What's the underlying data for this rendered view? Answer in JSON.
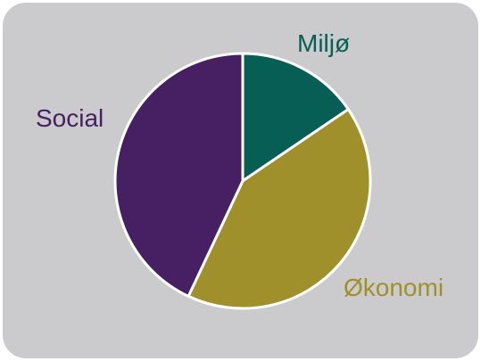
{
  "chart_data": {
    "type": "pie",
    "title": "",
    "start_angle_deg": 0,
    "direction": "clockwise",
    "background_color": "#cbcbcd",
    "slice_border_color": "#ffffff",
    "slices": [
      {
        "label": "Miljø",
        "value": 15.5,
        "color": "#075e55"
      },
      {
        "label": "Økonomi",
        "value": 41.5,
        "color": "#a0902c"
      },
      {
        "label": "Social",
        "value": 43.0,
        "color": "#462062"
      }
    ]
  }
}
